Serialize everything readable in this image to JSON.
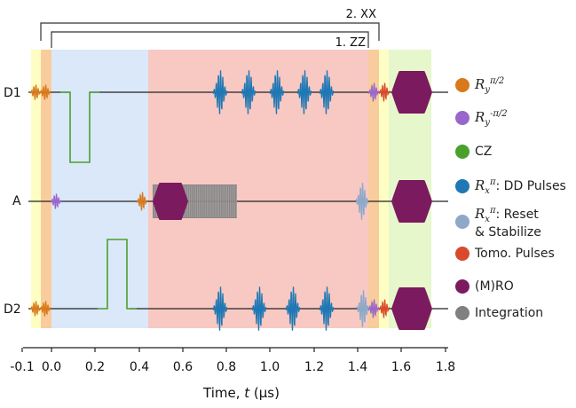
{
  "brackets": {
    "outer": "2. XX",
    "inner": "1. ZZ"
  },
  "qubits": [
    "D1",
    "A",
    "D2"
  ],
  "axis": {
    "ticks": [
      "-0.1",
      "0.0",
      "0.2",
      "0.4",
      "0.6",
      "0.8",
      "1.0",
      "1.2",
      "1.4",
      "1.6",
      "1.8"
    ],
    "label_prefix": "Time, ",
    "label_var": "t",
    "label_unit": " (μs)"
  },
  "colors": {
    "ry_pi2": "#d8791c",
    "ry_mpi2": "#9966cc",
    "cz": "#4aa02c",
    "dd": "#1f77b4",
    "reset": "#8ea8c8",
    "tomo": "#d84a2b",
    "ro": "#7b1a5e",
    "integration": "#808080",
    "bg_yellow": "#fdfdc4",
    "bg_orange": "#f8cc9c",
    "bg_blue": "#dbe8f9",
    "bg_red": "#f7c9c2",
    "bg_green": "#e6f7cc"
  },
  "legend": [
    {
      "key": "ry_pi2",
      "sym": "R",
      "sub": "y",
      "sup": "π/2",
      "text": ""
    },
    {
      "key": "ry_mpi2",
      "sym": "R",
      "sub": "y",
      "sup": "-π/2",
      "text": ""
    },
    {
      "key": "cz",
      "sym": "",
      "sub": "",
      "sup": "",
      "text": "CZ"
    },
    {
      "key": "dd",
      "sym": "R",
      "sub": "x",
      "sup": "π",
      "text": ": DD Pulses"
    },
    {
      "key": "reset",
      "sym": "R",
      "sub": "x",
      "sup": "π",
      "text": ": Reset",
      "text2": "& Stabilize"
    },
    {
      "key": "tomo",
      "sym": "",
      "sub": "",
      "sup": "",
      "text": "Tomo. Pulses"
    },
    {
      "key": "ro",
      "sym": "",
      "sub": "",
      "sup": "",
      "text": "(M)RO"
    },
    {
      "key": "integration",
      "sym": "",
      "sub": "",
      "sup": "",
      "text": "Integration"
    }
  ]
}
